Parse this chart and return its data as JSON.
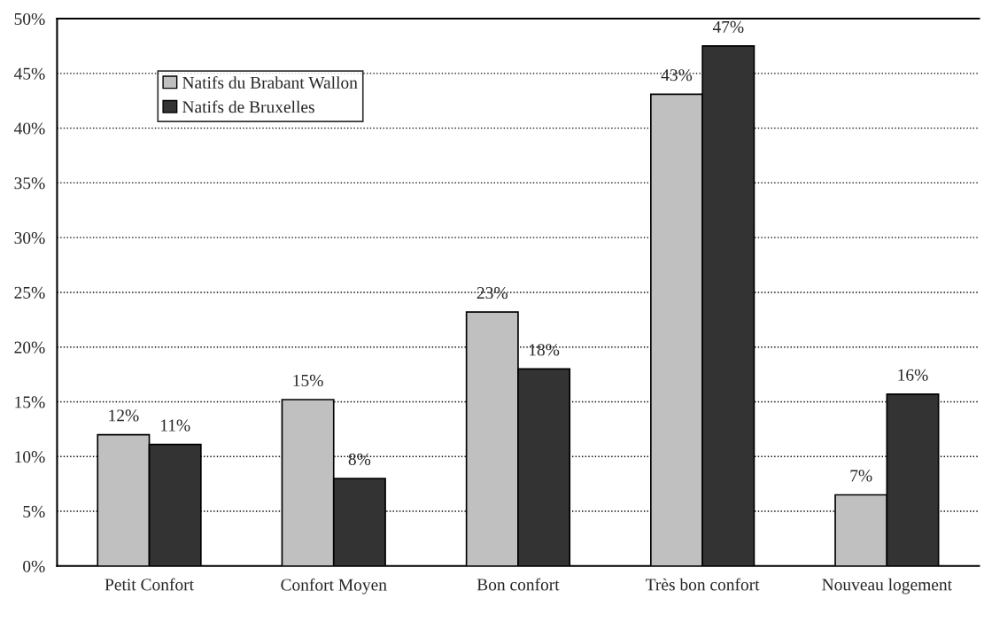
{
  "chart_data": {
    "type": "bar",
    "categories": [
      "Petit Confort",
      "Confort Moyen",
      "Bon confort",
      "Très bon confort",
      "Nouveau logement"
    ],
    "series": [
      {
        "name": "Natifs du Brabant Wallon",
        "color": "#c0c0c0",
        "values": [
          12.0,
          15.2,
          23.2,
          43.1,
          6.5
        ],
        "value_labels": [
          "12%",
          "15%",
          "23%",
          "43%",
          "7%"
        ]
      },
      {
        "name": "Natifs de Bruxelles",
        "color": "#333333",
        "values": [
          11.1,
          8.0,
          18.0,
          47.5,
          15.7
        ],
        "value_labels": [
          "11%",
          "8%",
          "18%",
          "47%",
          "16%"
        ]
      }
    ],
    "ylim": [
      0,
      50
    ],
    "yticks": [
      {
        "value": 0,
        "label": "0%"
      },
      {
        "value": 5,
        "label": "5%"
      },
      {
        "value": 10,
        "label": "10%"
      },
      {
        "value": 15,
        "label": "15%"
      },
      {
        "value": 20,
        "label": "20%"
      },
      {
        "value": 25,
        "label": "25%"
      },
      {
        "value": 30,
        "label": "30%"
      },
      {
        "value": 35,
        "label": "35%"
      },
      {
        "value": 40,
        "label": "40%"
      },
      {
        "value": 45,
        "label": "45%"
      },
      {
        "value": 50,
        "label": "50%"
      }
    ],
    "grid": "y",
    "legend": "top left"
  }
}
